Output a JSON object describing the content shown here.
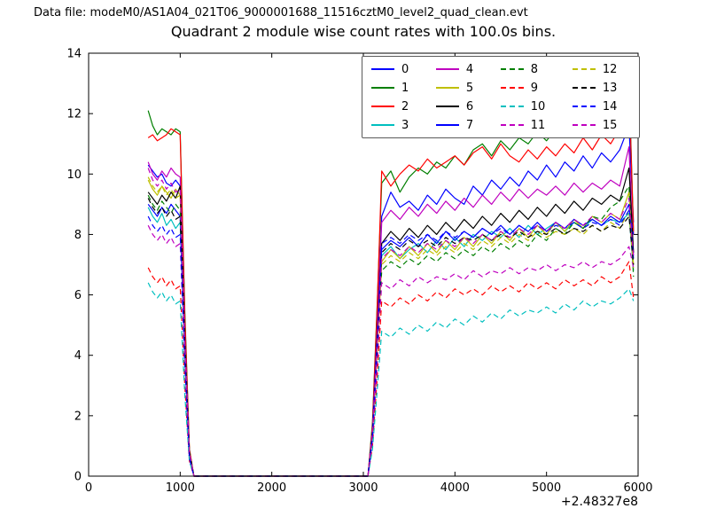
{
  "header": {
    "datafile_label": "Data file: modeM0/AS1A04_021T06_9000001688_11516cztM0_level2_quad_clean.evt"
  },
  "chart_data": {
    "type": "line",
    "title": "Quadrant 2 module wise count rates with 100.0s bins.",
    "xlabel": "",
    "ylabel": "",
    "x_offset_label": "+2.48327e8",
    "xlim": [
      0,
      6000
    ],
    "ylim": [
      0,
      14
    ],
    "xticks": [
      0,
      1000,
      2000,
      3000,
      4000,
      5000,
      6000
    ],
    "yticks": [
      0,
      2,
      4,
      6,
      8,
      10,
      12,
      14
    ],
    "grid": false,
    "legend_position": "upper right",
    "legend_columns": 4,
    "x": [
      650,
      700,
      750,
      800,
      850,
      900,
      950,
      1000,
      1050,
      1100,
      1150,
      3050,
      3100,
      3150,
      3200,
      3300,
      3400,
      3500,
      3600,
      3700,
      3800,
      3900,
      4000,
      4100,
      4200,
      4300,
      4400,
      4500,
      4600,
      4700,
      4800,
      4900,
      5000,
      5100,
      5200,
      5300,
      5400,
      5500,
      5600,
      5700,
      5800,
      5900,
      5950
    ],
    "series": [
      {
        "name": "0",
        "color": "#0000ff",
        "dash": false,
        "values": [
          10.3,
          10.1,
          9.9,
          10.0,
          9.7,
          9.6,
          9.8,
          9.6,
          4.8,
          0.8,
          0,
          0,
          1.6,
          5.0,
          8.6,
          9.4,
          8.9,
          9.1,
          8.8,
          9.3,
          9.0,
          9.5,
          9.2,
          9.0,
          9.6,
          9.3,
          9.8,
          9.5,
          9.9,
          9.6,
          10.1,
          9.8,
          10.3,
          9.9,
          10.4,
          10.1,
          10.6,
          10.2,
          10.7,
          10.4,
          10.8,
          11.6,
          8.4
        ]
      },
      {
        "name": "1",
        "color": "#007f00",
        "dash": false,
        "values": [
          12.1,
          11.6,
          11.3,
          11.5,
          11.4,
          11.3,
          11.5,
          11.4,
          5.5,
          0.9,
          0,
          0,
          1.8,
          5.6,
          9.7,
          10.1,
          9.4,
          9.9,
          10.2,
          10.0,
          10.4,
          10.2,
          10.6,
          10.3,
          10.8,
          11.0,
          10.6,
          11.1,
          10.8,
          11.2,
          11.0,
          11.4,
          11.1,
          11.5,
          11.3,
          11.6,
          11.4,
          11.8,
          11.5,
          11.9,
          11.7,
          13.2,
          8.1
        ]
      },
      {
        "name": "2",
        "color": "#ff0000",
        "dash": false,
        "values": [
          11.2,
          11.3,
          11.1,
          11.2,
          11.3,
          11.5,
          11.4,
          11.3,
          5.3,
          0.9,
          0,
          0,
          1.7,
          5.5,
          10.1,
          9.6,
          10.0,
          10.3,
          10.1,
          10.5,
          10.2,
          10.4,
          10.6,
          10.3,
          10.7,
          10.9,
          10.5,
          11.0,
          10.6,
          10.4,
          10.8,
          10.5,
          10.9,
          10.6,
          11.0,
          10.7,
          11.2,
          10.8,
          11.3,
          11.0,
          11.5,
          13.0,
          8.0
        ]
      },
      {
        "name": "3",
        "color": "#00bfbf",
        "dash": false,
        "values": [
          8.9,
          8.6,
          8.4,
          8.7,
          8.3,
          8.5,
          8.2,
          8.4,
          4.0,
          0.7,
          0,
          0,
          1.4,
          4.2,
          7.3,
          7.6,
          7.2,
          7.5,
          7.7,
          7.4,
          7.8,
          7.5,
          7.9,
          7.6,
          8.0,
          7.8,
          8.1,
          7.9,
          8.2,
          7.9,
          8.3,
          8.0,
          8.2,
          8.4,
          8.1,
          8.4,
          8.2,
          8.5,
          8.3,
          8.5,
          8.4,
          8.7,
          6.8
        ]
      },
      {
        "name": "4",
        "color": "#bf00bf",
        "dash": false,
        "values": [
          10.4,
          10.0,
          9.8,
          10.1,
          9.9,
          10.2,
          10.0,
          9.9,
          4.7,
          0.8,
          0,
          0,
          1.6,
          4.8,
          8.4,
          8.8,
          8.5,
          8.9,
          8.6,
          9.0,
          8.7,
          9.1,
          8.8,
          9.2,
          8.9,
          9.3,
          9.0,
          9.4,
          9.1,
          9.5,
          9.2,
          9.5,
          9.3,
          9.6,
          9.3,
          9.7,
          9.4,
          9.7,
          9.5,
          9.8,
          9.6,
          10.9,
          7.3
        ]
      },
      {
        "name": "5",
        "color": "#bfbf00",
        "dash": false,
        "values": [
          9.8,
          9.5,
          9.3,
          9.6,
          9.4,
          9.2,
          9.5,
          9.3,
          4.4,
          0.8,
          0,
          0,
          1.5,
          4.3,
          7.1,
          7.5,
          7.2,
          7.6,
          7.3,
          7.7,
          7.4,
          7.8,
          7.5,
          7.9,
          7.6,
          8.0,
          7.7,
          8.1,
          7.8,
          8.2,
          7.9,
          8.3,
          8.0,
          8.4,
          8.1,
          8.5,
          8.2,
          8.6,
          8.4,
          8.7,
          8.5,
          9.4,
          7.0
        ]
      },
      {
        "name": "6",
        "color": "#000000",
        "dash": false,
        "values": [
          9.4,
          9.2,
          9.0,
          9.3,
          9.1,
          9.4,
          9.2,
          9.6,
          4.5,
          0.8,
          0,
          0,
          1.5,
          4.6,
          7.7,
          8.1,
          7.8,
          8.2,
          7.9,
          8.3,
          8.0,
          8.4,
          8.1,
          8.5,
          8.2,
          8.6,
          8.3,
          8.7,
          8.4,
          8.8,
          8.5,
          8.9,
          8.6,
          9.0,
          8.7,
          9.1,
          8.8,
          9.2,
          9.0,
          9.3,
          9.1,
          10.2,
          7.4
        ]
      },
      {
        "name": "7",
        "color": "#0000ff",
        "dash": false,
        "values": [
          9.0,
          8.8,
          8.6,
          8.9,
          8.7,
          9.0,
          8.8,
          8.6,
          4.1,
          0.7,
          0,
          0,
          1.4,
          4.4,
          7.5,
          7.8,
          7.6,
          7.9,
          7.6,
          8.0,
          7.7,
          8.1,
          7.8,
          8.1,
          7.9,
          8.2,
          8.0,
          8.3,
          8.0,
          8.3,
          8.1,
          8.4,
          8.1,
          8.4,
          8.2,
          8.5,
          8.3,
          8.5,
          8.3,
          8.6,
          8.4,
          9.0,
          7.2
        ]
      },
      {
        "name": "8",
        "color": "#007f00",
        "dash": true,
        "values": [
          9.3,
          9.0,
          8.8,
          9.1,
          8.9,
          8.7,
          9.0,
          8.8,
          4.2,
          0.7,
          0,
          0,
          1.4,
          4.0,
          6.8,
          7.1,
          6.9,
          7.2,
          7.0,
          7.3,
          7.1,
          7.4,
          7.2,
          7.5,
          7.3,
          7.6,
          7.4,
          7.7,
          7.5,
          7.8,
          7.6,
          8.0,
          7.8,
          8.2,
          8.0,
          8.4,
          8.2,
          8.6,
          8.5,
          8.9,
          9.1,
          9.6,
          6.6
        ]
      },
      {
        "name": "9",
        "color": "#ff0000",
        "dash": true,
        "values": [
          6.9,
          6.6,
          6.4,
          6.6,
          6.3,
          6.5,
          6.2,
          6.3,
          3.0,
          0.5,
          0,
          0,
          1.0,
          3.2,
          5.8,
          5.6,
          5.9,
          5.7,
          6.0,
          5.8,
          6.1,
          5.9,
          6.2,
          6.0,
          6.2,
          6.0,
          6.3,
          6.1,
          6.3,
          6.1,
          6.4,
          6.2,
          6.4,
          6.2,
          6.5,
          6.3,
          6.5,
          6.3,
          6.6,
          6.4,
          6.6,
          7.1,
          5.9
        ]
      },
      {
        "name": "10",
        "color": "#00bfbf",
        "dash": true,
        "values": [
          6.4,
          6.1,
          5.9,
          6.1,
          5.8,
          6.0,
          5.7,
          5.8,
          2.7,
          0.5,
          0,
          0,
          0.9,
          2.8,
          4.8,
          4.6,
          4.9,
          4.7,
          5.0,
          4.8,
          5.1,
          4.9,
          5.2,
          5.0,
          5.3,
          5.1,
          5.4,
          5.2,
          5.5,
          5.3,
          5.5,
          5.4,
          5.6,
          5.4,
          5.7,
          5.5,
          5.8,
          5.6,
          5.8,
          5.7,
          5.9,
          6.2,
          5.8
        ]
      },
      {
        "name": "11",
        "color": "#bf00bf",
        "dash": true,
        "values": [
          8.3,
          8.0,
          7.8,
          8.0,
          7.7,
          7.9,
          7.6,
          7.7,
          3.7,
          0.6,
          0,
          0,
          1.2,
          3.6,
          6.4,
          6.2,
          6.5,
          6.3,
          6.6,
          6.4,
          6.6,
          6.5,
          6.7,
          6.5,
          6.8,
          6.6,
          6.8,
          6.7,
          6.9,
          6.7,
          6.9,
          6.8,
          7.0,
          6.8,
          7.0,
          6.9,
          7.1,
          6.9,
          7.1,
          7.0,
          7.2,
          7.6,
          6.9
        ]
      },
      {
        "name": "12",
        "color": "#bfbf00",
        "dash": true,
        "values": [
          9.9,
          9.6,
          9.4,
          9.6,
          9.3,
          9.5,
          9.2,
          9.3,
          4.4,
          0.8,
          0,
          0,
          1.5,
          4.1,
          7.0,
          7.3,
          7.1,
          7.4,
          7.2,
          7.5,
          7.3,
          7.6,
          7.4,
          7.7,
          7.5,
          7.8,
          7.6,
          7.9,
          7.7,
          8.0,
          7.8,
          8.1,
          7.9,
          8.1,
          8.0,
          8.2,
          8.0,
          8.3,
          8.1,
          8.4,
          8.2,
          8.8,
          6.9
        ]
      },
      {
        "name": "13",
        "color": "#000000",
        "dash": true,
        "values": [
          9.2,
          8.9,
          8.7,
          8.9,
          8.6,
          8.8,
          8.5,
          8.6,
          4.1,
          0.7,
          0,
          0,
          1.4,
          4.2,
          7.4,
          7.7,
          7.5,
          7.8,
          7.6,
          7.8,
          7.6,
          7.9,
          7.7,
          7.9,
          7.8,
          8.0,
          7.8,
          8.0,
          7.9,
          8.1,
          7.9,
          8.1,
          8.0,
          8.2,
          8.0,
          8.2,
          8.1,
          8.3,
          8.1,
          8.3,
          8.2,
          8.6,
          7.0
        ]
      },
      {
        "name": "14",
        "color": "#0000ff",
        "dash": true,
        "values": [
          8.6,
          8.3,
          8.1,
          8.3,
          8.0,
          8.2,
          7.9,
          8.0,
          3.8,
          0.6,
          0,
          0,
          1.3,
          4.3,
          7.7,
          7.9,
          7.7,
          8.0,
          7.8,
          8.0,
          7.8,
          8.1,
          7.9,
          8.1,
          7.9,
          8.2,
          8.0,
          8.2,
          8.0,
          8.3,
          8.1,
          8.3,
          8.1,
          8.3,
          8.2,
          8.4,
          8.2,
          8.4,
          8.3,
          8.5,
          8.3,
          8.8,
          8.0
        ]
      },
      {
        "name": "15",
        "color": "#bf00bf",
        "dash": true,
        "values": [
          10.2,
          9.8,
          9.6,
          9.8,
          9.5,
          9.7,
          9.4,
          9.5,
          4.5,
          0.8,
          0,
          0,
          1.5,
          4.4,
          7.2,
          7.5,
          7.3,
          7.6,
          7.4,
          7.7,
          7.5,
          7.8,
          7.6,
          7.9,
          7.7,
          8.0,
          7.8,
          8.1,
          7.9,
          8.2,
          8.0,
          8.3,
          8.1,
          8.4,
          8.2,
          8.5,
          8.3,
          8.6,
          8.4,
          8.7,
          8.5,
          9.2,
          7.2
        ]
      }
    ]
  }
}
